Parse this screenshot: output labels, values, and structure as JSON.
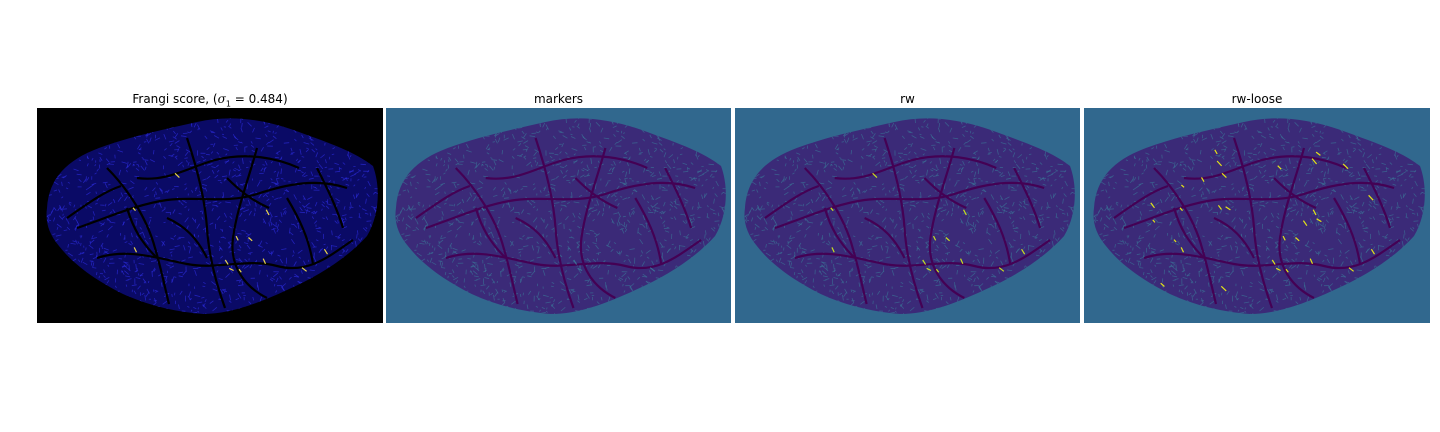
{
  "panels": [
    {
      "id": "frangi",
      "title_text": "Frangi score, (",
      "title_sigma": "σ",
      "title_sub": "1",
      "title_rest": " = 0.484)",
      "background": "#000000",
      "blob_fill": "#0a0a66",
      "vessel_color": "#000000",
      "texture_color": "#2b2bd6",
      "highlight_color": "#e8d44a"
    },
    {
      "id": "markers",
      "title": "markers",
      "background": "#31688e",
      "blob_fill": "#3b2a78",
      "vessel_color": "#440154",
      "texture_color": "#3b6f95",
      "highlight_color": "#3b6f95"
    },
    {
      "id": "rw",
      "title": "rw",
      "background": "#31688e",
      "blob_fill": "#3b2a78",
      "vessel_color": "#440154",
      "texture_color": "#3b6f95",
      "highlight_color": "#c8e020"
    },
    {
      "id": "rw-loose",
      "title": "rw-loose",
      "background": "#31688e",
      "blob_fill": "#3b2a78",
      "vessel_color": "#440154",
      "texture_color": "#3b6f95",
      "highlight_color": "#e3e418"
    }
  ]
}
